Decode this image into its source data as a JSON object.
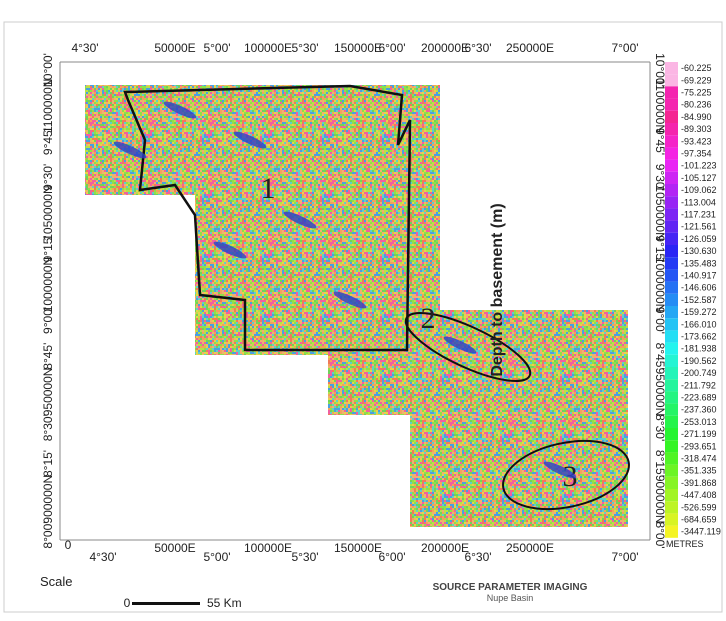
{
  "map": {
    "top_axis": [
      "4°30'",
      "50000E",
      "5°00'",
      "100000E",
      "5°30'",
      "150000E",
      "6°00'",
      "200000E",
      "6°30'",
      "250000E",
      "7°00'"
    ],
    "bottom_axis": [
      "0",
      "4°30'",
      "50000E",
      "5°00'",
      "100000E",
      "5°30'",
      "150000E",
      "6°00'",
      "200000E",
      "6°30'",
      "250000E",
      "7°00'"
    ],
    "left_axis": [
      "10°00'",
      "1100000N",
      "9°45'",
      "9°30'",
      "1050000N",
      "9°15'",
      "1000000N",
      "9°00'",
      "8°45'",
      "950000N",
      "8°30'",
      "8°15'",
      "900000N",
      "8°00'"
    ],
    "right_axis": [
      "10°00'",
      "1100000N",
      "9°45'",
      "9°30'",
      "1050000N",
      "9°15'",
      "1000000N",
      "9°00'",
      "8°45'",
      "950000N",
      "8°30'",
      "8°15'",
      "900000N",
      "8°00'"
    ],
    "regions": [
      "1",
      "2",
      "3"
    ],
    "annotation": "Depth to basement (m)",
    "legend": {
      "values": [
        "-60.225",
        "-69.229",
        "-75.225",
        "-80.236",
        "-84.990",
        "-89.303",
        "-93.423",
        "-97.354",
        "-101.223",
        "-105.127",
        "-109.062",
        "-113.004",
        "-117.231",
        "-121.561",
        "-126.059",
        "-130.630",
        "-135.483",
        "-140.917",
        "-146.606",
        "-152.587",
        "-159.272",
        "-166.010",
        "-173.662",
        "-181.938",
        "-190.562",
        "-200.749",
        "-211.792",
        "-223.689",
        "-237.360",
        "-253.013",
        "-271.199",
        "-293.651",
        "-318.474",
        "-351.335",
        "-391.868",
        "-447.408",
        "-526.599",
        "-684.659",
        "-3447.119"
      ],
      "unit": "METRES"
    },
    "scale": {
      "label": "Scale",
      "start": "0",
      "end": "55 Km"
    },
    "footer": {
      "title": "SOURCE PARAMETER IMAGING",
      "subtitle": "Nupe Basin"
    }
  }
}
